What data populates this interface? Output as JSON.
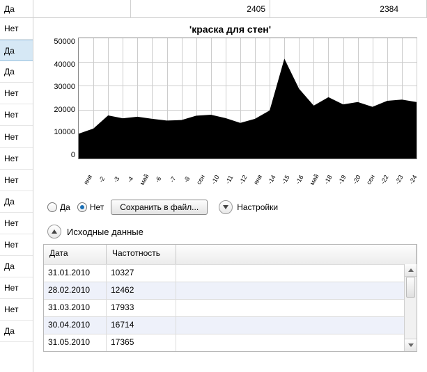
{
  "top_row": {
    "c1": "Да",
    "c2": "",
    "c3": "2405",
    "c4": "2384"
  },
  "sidebar": {
    "items": [
      {
        "label": "Нет",
        "selected": false
      },
      {
        "label": "Да",
        "selected": true
      },
      {
        "label": "Да",
        "selected": false
      },
      {
        "label": "Нет",
        "selected": false
      },
      {
        "label": "Нет",
        "selected": false
      },
      {
        "label": "Нет",
        "selected": false
      },
      {
        "label": "Нет",
        "selected": false
      },
      {
        "label": "Нет",
        "selected": false
      },
      {
        "label": "Да",
        "selected": false
      },
      {
        "label": "Нет",
        "selected": false
      },
      {
        "label": "Нет",
        "selected": false
      },
      {
        "label": "Да",
        "selected": false
      },
      {
        "label": "Нет",
        "selected": false
      },
      {
        "label": "Нет",
        "selected": false
      },
      {
        "label": "Да",
        "selected": false
      }
    ]
  },
  "chart": {
    "type": "area",
    "title": "'краска для стен'",
    "ylim": [
      0,
      50000
    ],
    "ytick_step": 10000,
    "yticks": [
      "0",
      "10000",
      "20000",
      "30000",
      "40000",
      "50000"
    ],
    "xticks": [
      "янв",
      "-2",
      "-3",
      "-4",
      "май",
      "-6",
      "-7",
      "-8",
      "сен",
      "-10",
      "-11",
      "-12",
      "янв",
      "-14",
      "-15",
      "-16",
      "май",
      "-18",
      "-19",
      "-20",
      "сен",
      "-22",
      "-23",
      "-24"
    ],
    "values": [
      10327,
      12462,
      17933,
      16714,
      17365,
      16500,
      15800,
      16000,
      17800,
      18200,
      16800,
      14800,
      16500,
      20000,
      41500,
      29000,
      22000,
      25500,
      22500,
      23500,
      21500,
      24000,
      24500,
      23500
    ],
    "fill_color": "#000000",
    "background_color": "#ffffff",
    "grid_color": "#cccccc",
    "axis_color": "#888888",
    "title_fontsize": 14,
    "tick_fontsize": 10
  },
  "controls": {
    "radio_yes": "Да",
    "radio_no": "Нет",
    "radio_selected": "no",
    "save_button": "Сохранить в файл...",
    "settings_label": "Настройки"
  },
  "section": {
    "source_data": "Исходные данные"
  },
  "table": {
    "columns": [
      "Дата",
      "Частотность"
    ],
    "rows": [
      [
        "31.01.2010",
        "10327"
      ],
      [
        "28.02.2010",
        "12462"
      ],
      [
        "31.03.2010",
        "17933"
      ],
      [
        "30.04.2010",
        "16714"
      ],
      [
        "31.05.2010",
        "17365"
      ]
    ],
    "alt_row_bg": "#eef1fa",
    "header_bg": "#f2f2f2"
  }
}
